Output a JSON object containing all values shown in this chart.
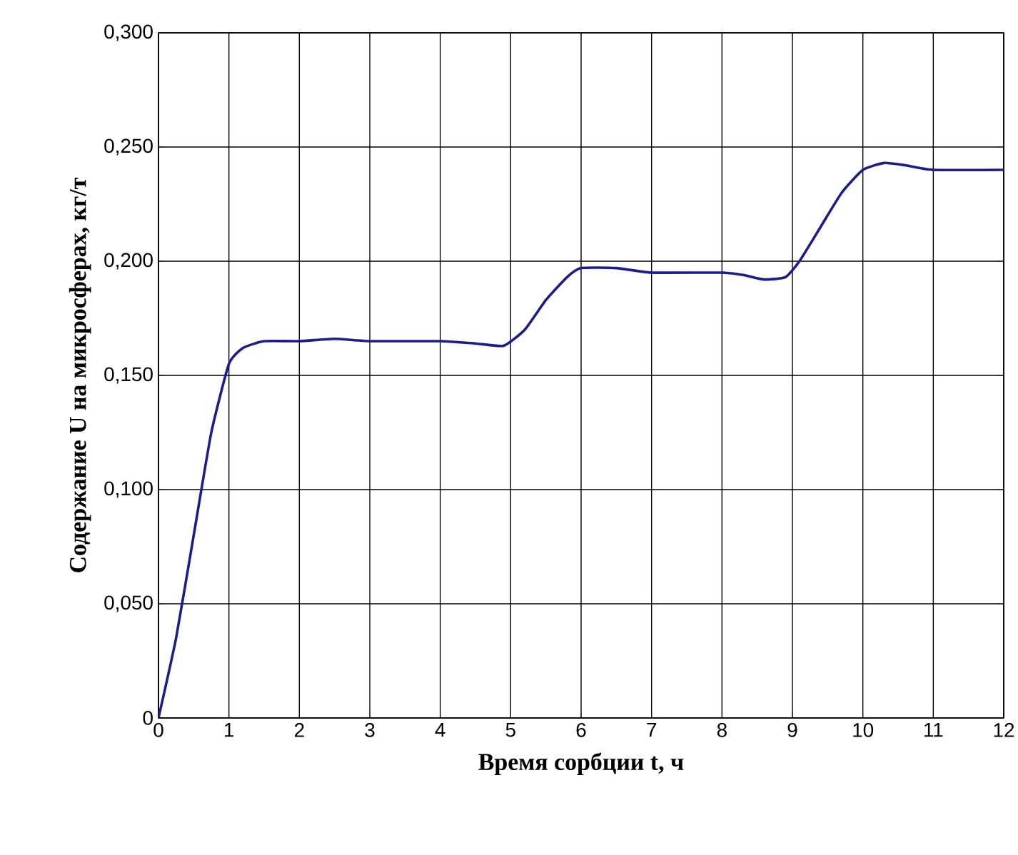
{
  "chart_data": {
    "type": "line",
    "xlabel": "Время сорбции t, ч",
    "ylabel": "Содержание U на микросферах, кг/т",
    "xlim": [
      0,
      12
    ],
    "ylim": [
      0,
      0.3
    ],
    "xticks": [
      0,
      1,
      2,
      3,
      4,
      5,
      6,
      7,
      8,
      9,
      10,
      11,
      12
    ],
    "yticks": [
      0,
      {
        "value": 0.05,
        "label": "0,050"
      },
      {
        "value": 0.1,
        "label": "0,100"
      },
      {
        "value": 0.15,
        "label": "0,150"
      },
      {
        "value": 0.2,
        "label": "0,200"
      },
      {
        "value": 0.25,
        "label": "0,250"
      },
      {
        "value": 0.3,
        "label": "0,300"
      }
    ],
    "grid": true,
    "marker": "none",
    "line_style": "solid",
    "series": [
      {
        "color": "#1c1c8c",
        "x": [
          0,
          0.25,
          0.5,
          0.75,
          1,
          1.2,
          1.5,
          2,
          2.5,
          3,
          4,
          4.5,
          4.9,
          5.2,
          5.5,
          5.8,
          6,
          6.5,
          7,
          8,
          8.3,
          8.6,
          8.9,
          9.1,
          9.4,
          9.7,
          10,
          10.3,
          10.6,
          11,
          12
        ],
        "values": [
          0,
          0.035,
          0.08,
          0.125,
          0.155,
          0.162,
          0.165,
          0.165,
          0.166,
          0.165,
          0.165,
          0.164,
          0.163,
          0.17,
          0.183,
          0.193,
          0.197,
          0.197,
          0.195,
          0.195,
          0.194,
          0.192,
          0.193,
          0.2,
          0.215,
          0.23,
          0.24,
          0.243,
          0.242,
          0.24,
          0.24
        ]
      }
    ]
  }
}
